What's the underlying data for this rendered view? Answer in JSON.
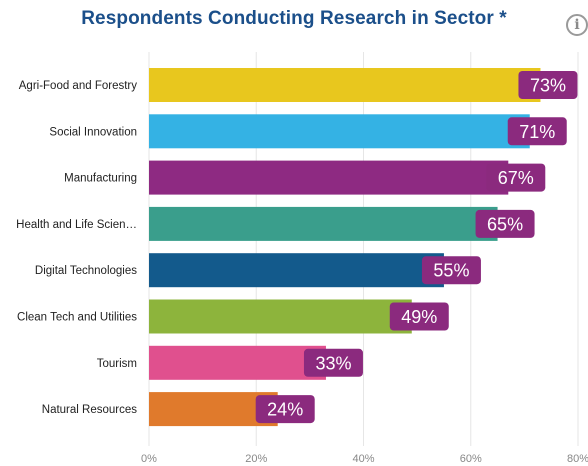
{
  "chart_data": {
    "type": "bar",
    "orientation": "horizontal",
    "title": "Respondents Conducting Research in Sector *",
    "categories": [
      "Agri-Food and Forestry",
      "Social Innovation",
      "Manufacturing",
      "Health and Life Scien…",
      "Digital Technologies",
      "Clean Tech and Utilities",
      "Tourism",
      "Natural Resources"
    ],
    "values": [
      73,
      71,
      67,
      65,
      55,
      49,
      33,
      24
    ],
    "data_labels": [
      "73%",
      "71%",
      "67%",
      "65%",
      "55%",
      "49%",
      "33%",
      "24%"
    ],
    "bar_colors": [
      "#e8c71e",
      "#34b2e4",
      "#8e2a82",
      "#3a9e8c",
      "#135a8c",
      "#8db43c",
      "#e0508e",
      "#e07a2c"
    ],
    "label_bg_color": "#8b2a7e",
    "xlim": [
      0,
      80
    ],
    "x_ticks": [
      0,
      20,
      40,
      60,
      80
    ],
    "x_tick_labels": [
      "0%",
      "20%",
      "40%",
      "60%",
      "80%"
    ],
    "grid": "vertical",
    "legend": "none"
  },
  "info_icon": {
    "glyph": "i",
    "icon": "info-icon"
  }
}
